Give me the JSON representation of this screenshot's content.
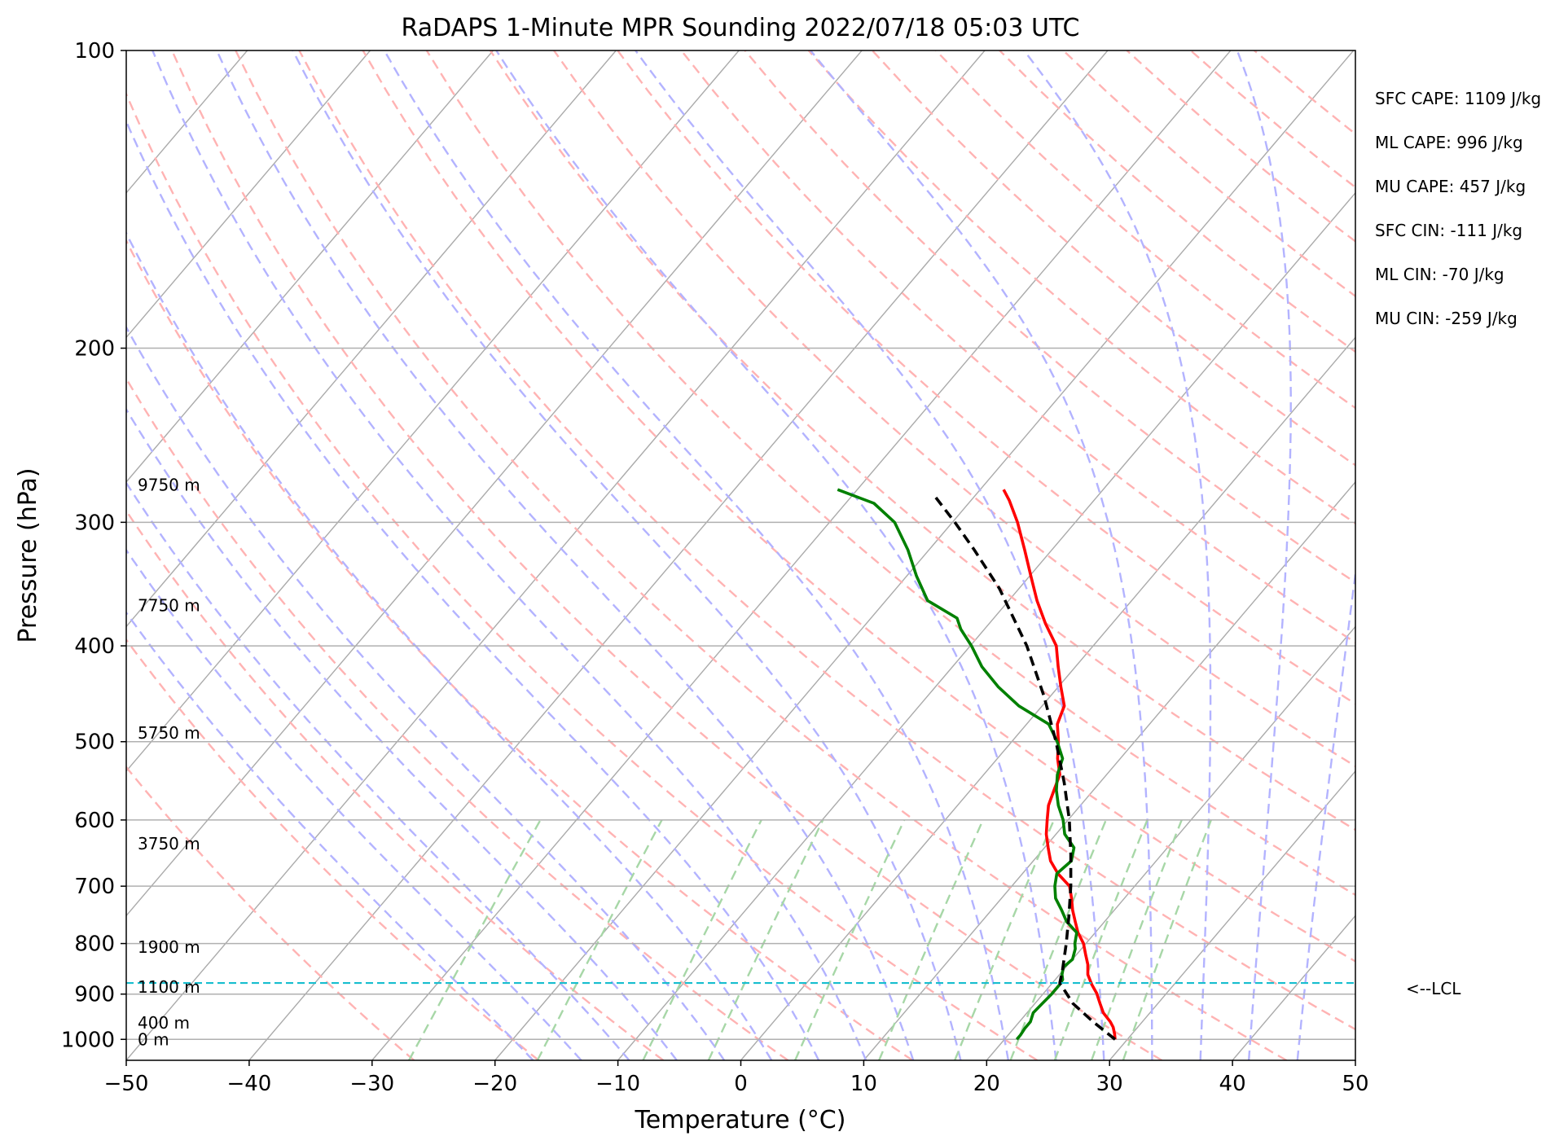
{
  "chart_data": {
    "type": "line",
    "title": "RaDAPS 1-Minute MPR Sounding 2022/07/18 05:03 UTC",
    "xlabel": "Temperature (°C)",
    "ylabel": "Pressure (hPa)",
    "xlim": [
      -50,
      50
    ],
    "ylim": [
      1050,
      100
    ],
    "y_scale": "log",
    "skew": "skew-T log-P",
    "grid": true,
    "x_ticks": [
      "−50",
      "−40",
      "−30",
      "−20",
      "−10",
      "0",
      "10",
      "20",
      "30",
      "40",
      "50"
    ],
    "y_ticks": [
      "100",
      "200",
      "300",
      "400",
      "500",
      "600",
      "700",
      "800",
      "900",
      "1000"
    ],
    "height_labels": [
      {
        "p": 1000,
        "label": "0 m"
      },
      {
        "p": 962,
        "label": "400 m"
      },
      {
        "p": 885,
        "label": "1100 m"
      },
      {
        "p": 807,
        "label": "1900 m"
      },
      {
        "p": 634,
        "label": "3750 m"
      },
      {
        "p": 490,
        "label": "5750 m"
      },
      {
        "p": 364,
        "label": "7750 m"
      },
      {
        "p": 275,
        "label": "9750 m"
      }
    ],
    "lcl": {
      "p": 877,
      "label": "<--LCL",
      "color": "#17becf"
    },
    "indices": [
      "SFC CAPE: 1109 J/kg",
      "ML CAPE: 996 J/kg",
      "MU CAPE: 457 J/kg",
      "SFC CIN: -111 J/kg",
      "ML CIN: -70 J/kg",
      "MU CIN: -259 J/kg"
    ],
    "series": [
      {
        "color": "#ff0000",
        "points": [
          [
            1000,
            29.0
          ],
          [
            988,
            28.6
          ],
          [
            972,
            28.0
          ],
          [
            960,
            27.4
          ],
          [
            940,
            26.2
          ],
          [
            920,
            25.3
          ],
          [
            898,
            24.3
          ],
          [
            880,
            23.3
          ],
          [
            860,
            22.3
          ],
          [
            840,
            21.6
          ],
          [
            820,
            20.7
          ],
          [
            800,
            19.8
          ],
          [
            780,
            18.6
          ],
          [
            760,
            17.6
          ],
          [
            740,
            16.6
          ],
          [
            720,
            15.7
          ],
          [
            700,
            14.7
          ],
          [
            680,
            12.9
          ],
          [
            660,
            11.4
          ],
          [
            640,
            10.3
          ],
          [
            620,
            9.2
          ],
          [
            600,
            8.3
          ],
          [
            580,
            7.4
          ],
          [
            560,
            6.8
          ],
          [
            540,
            6.2
          ],
          [
            520,
            4.9
          ],
          [
            500,
            3.8
          ],
          [
            480,
            2.5
          ],
          [
            460,
            1.8
          ],
          [
            440,
            0.2
          ],
          [
            420,
            -1.4
          ],
          [
            400,
            -3.0
          ],
          [
            380,
            -5.4
          ],
          [
            360,
            -7.7
          ],
          [
            340,
            -9.9
          ],
          [
            320,
            -12.2
          ],
          [
            300,
            -14.7
          ],
          [
            285,
            -16.9
          ],
          [
            278,
            -18.1
          ]
        ]
      },
      {
        "color": "#008000",
        "points": [
          [
            1000,
            21.0
          ],
          [
            990,
            21.0
          ],
          [
            975,
            20.9
          ],
          [
            960,
            20.9
          ],
          [
            940,
            20.5
          ],
          [
            920,
            20.6
          ],
          [
            900,
            20.7
          ],
          [
            880,
            20.7
          ],
          [
            870,
            20.6
          ],
          [
            860,
            20.2
          ],
          [
            845,
            19.8
          ],
          [
            830,
            20.0
          ],
          [
            810,
            19.5
          ],
          [
            800,
            19.1
          ],
          [
            780,
            18.5
          ],
          [
            760,
            16.9
          ],
          [
            740,
            15.7
          ],
          [
            720,
            14.4
          ],
          [
            700,
            13.5
          ],
          [
            680,
            12.8
          ],
          [
            660,
            13.1
          ],
          [
            640,
            12.4
          ],
          [
            620,
            10.7
          ],
          [
            600,
            9.6
          ],
          [
            580,
            8.2
          ],
          [
            560,
            7.0
          ],
          [
            540,
            6.0
          ],
          [
            520,
            5.3
          ],
          [
            500,
            3.7
          ],
          [
            480,
            1.8
          ],
          [
            460,
            -1.9
          ],
          [
            440,
            -4.9
          ],
          [
            420,
            -7.6
          ],
          [
            400,
            -9.9
          ],
          [
            385,
            -11.9
          ],
          [
            375,
            -13.0
          ],
          [
            360,
            -16.6
          ],
          [
            340,
            -19.2
          ],
          [
            320,
            -21.7
          ],
          [
            300,
            -24.7
          ],
          [
            287,
            -27.7
          ],
          [
            278,
            -31.6
          ]
        ]
      },
      {
        "color": "#000000",
        "dashed": true,
        "points": [
          [
            1000,
            29.0
          ],
          [
            960,
            26.0
          ],
          [
            920,
            23.1
          ],
          [
            877,
            20.6
          ],
          [
            850,
            19.9
          ],
          [
            800,
            18.4
          ],
          [
            750,
            16.7
          ],
          [
            700,
            14.8
          ],
          [
            650,
            12.6
          ],
          [
            600,
            10.1
          ],
          [
            550,
            7.1
          ],
          [
            500,
            3.6
          ],
          [
            450,
            -0.5
          ],
          [
            400,
            -5.4
          ],
          [
            350,
            -11.6
          ],
          [
            320,
            -16.3
          ],
          [
            300,
            -19.8
          ],
          [
            283,
            -23.1
          ]
        ]
      }
    ],
    "background_lines": {
      "isotherm_color": "#aaaaaa",
      "dry_adiabat_color": "#ffb3b3",
      "moist_adiabat_color": "#b3b3ff",
      "mixing_ratio_color": "#a7d7a7"
    }
  }
}
